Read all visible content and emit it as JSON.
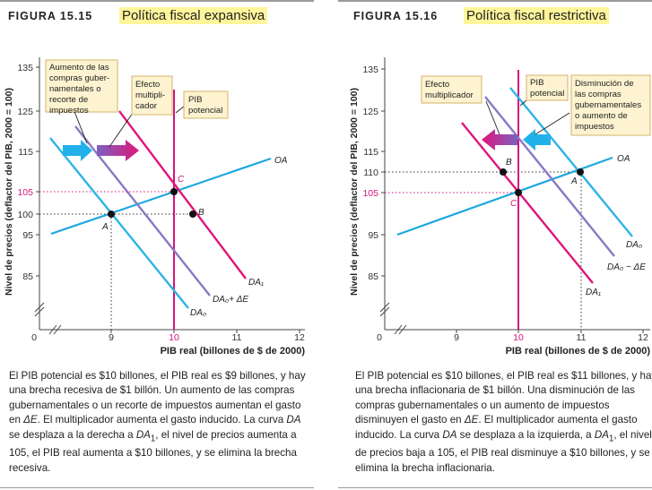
{
  "panels": [
    {
      "figure_label": "FIGURA 15.15",
      "title": "Política fiscal expansiva",
      "axis": {
        "ylabel": "Nivel de precios (deflactor del PIB, 2000 = 100)",
        "xlabel": "PIB real (billones de $ de 2000)",
        "origin": "0",
        "x_ticks": [
          "9",
          "10",
          "11",
          "12"
        ],
        "y_ticks": [
          "135",
          "125",
          "115",
          "105",
          "100",
          "95",
          "85"
        ]
      },
      "curves": {
        "OA": "OA",
        "DA0": "DA0",
        "DA0_plus": "DA0+ ΔE",
        "DA1": "DA1"
      },
      "points": {
        "A": "A",
        "B": "B",
        "C": "C"
      },
      "notes": {
        "change": "Aumento de las compras gubernamentales o recorte de impuestos",
        "multiplier": "Efecto multiplicador",
        "potential": "PIB potencial"
      },
      "caption": "El PIB potencial es $10 billones, el PIB real es $9 billones, y hay una brecha recesiva de $1 billón. Un aumento de las compras gubernamentales o un recorte de impuestos aumentan el gasto en ΔE. El multiplicador aumenta el gasto inducido. La curva DA se desplaza a la derecha a DA1, el nivel de precios aumenta a 105, el PIB real aumenta a $10 billones, y se elimina la brecha recesiva."
    },
    {
      "figure_label": "FIGURA 15.16",
      "title": "Política fiscal restrictiva",
      "axis": {
        "ylabel": "Nivel de precios (deflactor del PIB, 2000 = 100)",
        "xlabel": "PIB real (billones de $ de 2000)",
        "origin": "0",
        "x_ticks": [
          "9",
          "10",
          "11",
          "12"
        ],
        "y_ticks": [
          "135",
          "125",
          "115",
          "110",
          "105",
          "95",
          "85"
        ]
      },
      "curves": {
        "OA": "OA",
        "DA0": "DA0",
        "DA0_minus": "DA0 − ΔE",
        "DA1": "DA1"
      },
      "points": {
        "A": "A",
        "B": "B",
        "C": "C"
      },
      "notes": {
        "change": "Disminución de las compras gubernamentales o aumento de impuestos",
        "multiplier": "Efecto multiplicador",
        "potential": "PIB potencial"
      },
      "caption": "El PIB potencial es $10 billones, el PIB real es $11 billones, y hay una brecha inflacionaria de $1 billón. Una disminución de las compras gubernamentales o un aumento de impuestos disminuyen el gasto en ΔE. El multiplicador aumenta el gasto inducido. La curva DA se desplaza a la izquierda, a DA1, el nivel de precios baja a 105, el PIB real disminuye a $10 billones, y se elimina la brecha inflacionaria."
    }
  ],
  "colors": {
    "OA": "#1ea8e0",
    "DA0": "#2eb4e6",
    "DA_intermediate": "#8b78c4",
    "DA1": "#e0157a",
    "potential": "#d4137e",
    "note_bg": "#fdf3d0",
    "note_border": "#d6b36a",
    "highlight": "#fff59a"
  },
  "chart_data": [
    {
      "type": "line",
      "title": "Política fiscal expansiva",
      "xlabel": "PIB real (billones de $ de 2000)",
      "ylabel": "Nivel de precios (deflactor del PIB, 2000 = 100)",
      "xlim": [
        8,
        12
      ],
      "ylim": [
        75,
        140
      ],
      "series": [
        {
          "name": "OA",
          "x": [
            7.45,
            11.6
          ],
          "y": [
            93.2,
            112.3
          ]
        },
        {
          "name": "DA0",
          "x": [
            7.45,
            9.1
          ],
          "y": [
            118,
            96.2
          ]
        },
        {
          "name": "DA0+ ΔE",
          "x": [
            7.85,
            10.0
          ],
          "y": [
            122.6,
            89.0
          ]
        },
        {
          "name": "DA1",
          "x": [
            8.55,
            10.45
          ],
          "y": [
            128.5,
            98.5
          ]
        },
        {
          "name": "PIB potencial",
          "x": [
            10.0,
            10.0
          ],
          "y": [
            75,
            138
          ]
        }
      ],
      "points": [
        {
          "label": "A",
          "x": 9.0,
          "y": 100
        },
        {
          "label": "B",
          "x": 10.35,
          "y": 100
        },
        {
          "label": "C",
          "x": 10.0,
          "y": 105
        }
      ]
    },
    {
      "type": "line",
      "title": "Política fiscal restrictiva",
      "xlabel": "PIB real (billones de $ de 2000)",
      "ylabel": "Nivel de precios (deflactor del PIB, 2000 = 100)",
      "xlim": [
        8,
        12
      ],
      "ylim": [
        75,
        140
      ],
      "series": [
        {
          "name": "OA",
          "x": [
            7.0,
            11.7
          ],
          "y": [
            94.5,
            115.0
          ]
        },
        {
          "name": "DA0",
          "x": [
            9.85,
            11.85
          ],
          "y": [
            133.5,
            98.5
          ]
        },
        {
          "name": "DA0 − ΔE",
          "x": [
            9.3,
            11.5
          ],
          "y": [
            127.3,
            90.5
          ]
        },
        {
          "name": "DA1",
          "x": [
            8.72,
            11.05
          ],
          "y": [
            121.5,
            82.5
          ]
        },
        {
          "name": "PIB potencial",
          "x": [
            10.0,
            10.0
          ],
          "y": [
            75,
            138
          ]
        }
      ],
      "points": [
        {
          "label": "A",
          "x": 11.0,
          "y": 110
        },
        {
          "label": "B",
          "x": 9.65,
          "y": 110
        },
        {
          "label": "C",
          "x": 10.0,
          "y": 105
        }
      ]
    }
  ]
}
